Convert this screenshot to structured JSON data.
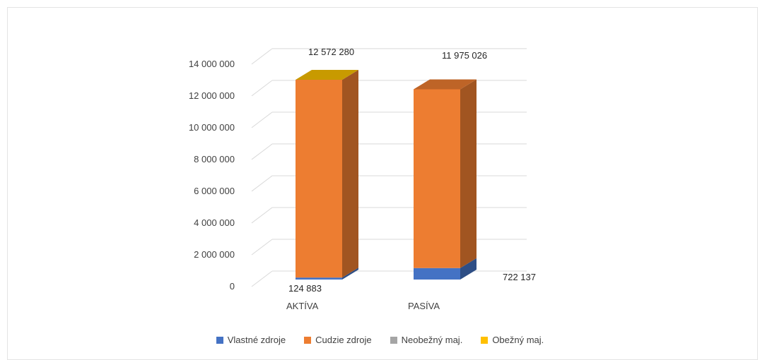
{
  "chart_data": {
    "type": "bar",
    "stacked": true,
    "three_d": true,
    "categories": [
      "AKTÍVA",
      "PASÍVA"
    ],
    "series": [
      {
        "name": "Vlastné zdroje",
        "color": "#4472C4",
        "values": [
          124883,
          722137
        ]
      },
      {
        "name": "Cudzie zdroje",
        "color": "#ED7D31",
        "values": [
          12447397,
          11252889
        ]
      },
      {
        "name": "Neobežný maj.",
        "color": "#A5A5A5",
        "values": [
          0,
          0
        ]
      },
      {
        "name": "Obežný maj.",
        "color": "#FFC000",
        "values": [
          0,
          0
        ]
      }
    ],
    "data_labels": {
      "AKTÍVA": {
        "top": "12 572 280",
        "bottom": "124 883"
      },
      "PASÍVA": {
        "top": "11 975 026",
        "bottom": "722 137"
      }
    },
    "ylim": [
      0,
      14000000
    ],
    "yticks": [
      0,
      2000000,
      4000000,
      6000000,
      8000000,
      10000000,
      12000000,
      14000000
    ],
    "ytick_labels": [
      "0",
      "2 000 000",
      "4 000 000",
      "6 000 000",
      "8 000 000",
      "10 000 000",
      "12 000 000",
      "14 000 000"
    ],
    "grid": true,
    "legend_position": "bottom"
  }
}
